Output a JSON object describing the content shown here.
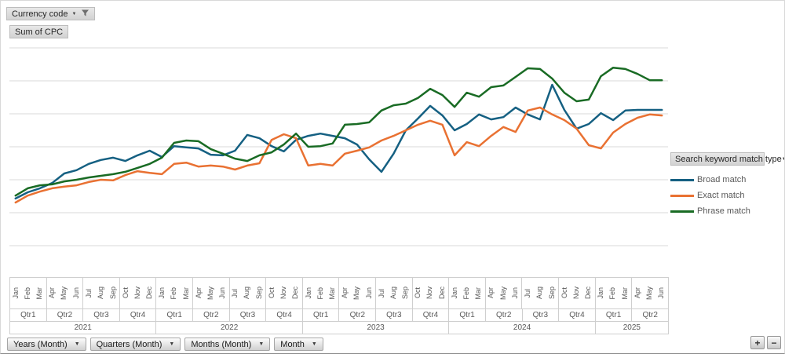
{
  "filters": {
    "currency_button_label": "Currency code",
    "value_button_label": "Sum of CPC"
  },
  "legend": {
    "title": "Search keyword match type",
    "items": [
      {
        "label": "Broad match",
        "color": "#156082"
      },
      {
        "label": "Exact match",
        "color": "#E97132"
      },
      {
        "label": "Phrase match",
        "color": "#196B24"
      }
    ]
  },
  "axis_fields": {
    "years_button": "Years (Month)",
    "quarters_button": "Quarters (Month)",
    "months_button": "Months (Month)",
    "month_button": "Month"
  },
  "zoom_controls": {
    "expand": "+",
    "collapse": "−"
  },
  "chart_data": {
    "type": "line",
    "title": "",
    "value_axis": {
      "labels_visible": false,
      "gridline_count": 7,
      "ylim": [
        0,
        8
      ]
    },
    "legend_position": "right",
    "categories": {
      "months": [
        "Jan",
        "Feb",
        "Mar",
        "Apr",
        "May",
        "Jun",
        "Jul",
        "Aug",
        "Sep",
        "Oct",
        "Nov",
        "Dec",
        "Jan",
        "Feb",
        "Mar",
        "Apr",
        "May",
        "Jun",
        "Jul",
        "Aug",
        "Sep",
        "Oct",
        "Nov",
        "Dec",
        "Jan",
        "Feb",
        "Mar",
        "Apr",
        "May",
        "Jun",
        "Jul",
        "Aug",
        "Sep",
        "Oct",
        "Nov",
        "Dec",
        "Jan",
        "Feb",
        "Mar",
        "Apr",
        "May",
        "Jun",
        "Jul",
        "Aug",
        "Sep",
        "Oct",
        "Nov",
        "Dec",
        "Jan",
        "Feb",
        "Mar",
        "Apr",
        "May",
        "Jun"
      ],
      "quarters": [
        "Qtr1",
        "Qtr2",
        "Qtr3",
        "Qtr4",
        "Qtr1",
        "Qtr2",
        "Qtr3",
        "Qtr4",
        "Qtr1",
        "Qtr2",
        "Qtr3",
        "Qtr4",
        "Qtr1",
        "Qtr2",
        "Qtr3",
        "Qtr4",
        "Qtr1",
        "Qtr2"
      ],
      "years": [
        {
          "label": "2021",
          "span": 12
        },
        {
          "label": "2022",
          "span": 12
        },
        {
          "label": "2023",
          "span": 12
        },
        {
          "label": "2024",
          "span": 12
        },
        {
          "label": "2025",
          "span": 6
        }
      ]
    },
    "series": [
      {
        "name": "Broad match",
        "color": "#156082",
        "values": [
          2.43,
          2.62,
          2.74,
          2.9,
          3.19,
          3.29,
          3.48,
          3.6,
          3.67,
          3.57,
          3.74,
          3.88,
          3.69,
          4.02,
          3.98,
          3.95,
          3.76,
          3.74,
          3.88,
          4.36,
          4.26,
          4.02,
          3.86,
          4.21,
          4.33,
          4.4,
          4.33,
          4.26,
          4.07,
          3.62,
          3.24,
          3.79,
          4.5,
          4.86,
          5.24,
          4.95,
          4.5,
          4.69,
          4.98,
          4.83,
          4.9,
          5.19,
          4.98,
          4.83,
          5.88,
          5.12,
          4.55,
          4.69,
          5.02,
          4.81,
          5.1,
          5.12,
          5.12,
          5.12
        ]
      },
      {
        "name": "Exact match",
        "color": "#E97132",
        "values": [
          2.31,
          2.52,
          2.64,
          2.74,
          2.79,
          2.83,
          2.93,
          3.0,
          2.98,
          3.14,
          3.26,
          3.21,
          3.17,
          3.48,
          3.52,
          3.4,
          3.43,
          3.4,
          3.31,
          3.43,
          3.5,
          4.21,
          4.38,
          4.26,
          3.43,
          3.48,
          3.43,
          3.79,
          3.88,
          3.98,
          4.19,
          4.33,
          4.5,
          4.67,
          4.79,
          4.67,
          3.74,
          4.14,
          4.02,
          4.33,
          4.6,
          4.45,
          5.1,
          5.19,
          4.98,
          4.81,
          4.55,
          4.05,
          3.95,
          4.43,
          4.69,
          4.88,
          4.98,
          4.95
        ]
      },
      {
        "name": "Phrase match",
        "color": "#196B24",
        "values": [
          2.52,
          2.74,
          2.83,
          2.86,
          2.95,
          3.0,
          3.07,
          3.12,
          3.17,
          3.24,
          3.36,
          3.48,
          3.67,
          4.12,
          4.19,
          4.17,
          3.93,
          3.79,
          3.64,
          3.57,
          3.74,
          3.83,
          4.07,
          4.4,
          4.0,
          4.02,
          4.1,
          4.67,
          4.69,
          4.74,
          5.1,
          5.26,
          5.31,
          5.48,
          5.76,
          5.57,
          5.21,
          5.64,
          5.52,
          5.81,
          5.86,
          6.12,
          6.38,
          6.36,
          6.07,
          5.64,
          5.38,
          5.43,
          6.14,
          6.4,
          6.36,
          6.21,
          6.02,
          6.02
        ]
      }
    ]
  }
}
